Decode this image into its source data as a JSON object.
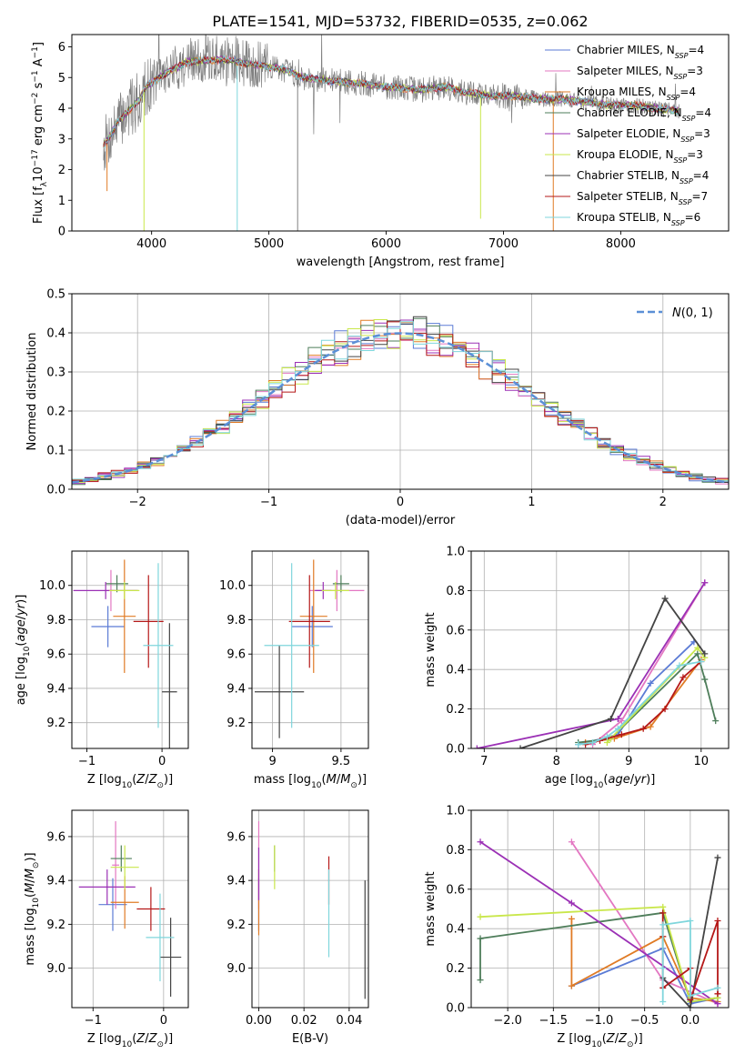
{
  "figure": {
    "title": "PLATE=1541, MJD=53732, FIBERID=0535, z=0.062"
  },
  "chart_data": [
    {
      "id": "spectrum",
      "type": "line",
      "xlabel": "wavelength [Angstrom, rest frame]",
      "ylabel": "Flux [f_λ 10^-17 erg cm^-2 s^-1 A^-1]",
      "xlim": [
        3320,
        8920
      ],
      "ylim": [
        0,
        6.4
      ],
      "xticks": [
        4000,
        5000,
        6000,
        7000,
        8000
      ],
      "yticks": [
        0,
        1,
        2,
        3,
        4,
        5,
        6
      ],
      "legend_position": "right",
      "continuum_anchors": {
        "x": [
          3590,
          3650,
          3700,
          3800,
          3900,
          3950,
          4100,
          4300,
          4600,
          4900,
          5100,
          5300,
          5500,
          5800,
          6000,
          6300,
          6500,
          6700,
          6900,
          7100,
          7300,
          7500,
          7700,
          7900,
          8100,
          8300,
          8500
        ],
        "y": [
          2.8,
          3.1,
          3.5,
          3.9,
          4.3,
          4.7,
          5.1,
          5.5,
          5.6,
          5.4,
          5.3,
          5.0,
          4.9,
          4.8,
          4.7,
          4.6,
          4.7,
          4.5,
          4.4,
          4.4,
          4.3,
          4.3,
          4.2,
          4.1,
          4.1,
          4.0,
          3.9
        ]
      },
      "data_dips": [
        {
          "x": 3620,
          "y": 1.3
        },
        {
          "x": 3935,
          "y": 0.0
        },
        {
          "x": 4730,
          "y": 0.0
        },
        {
          "x": 5245,
          "y": 0.0
        },
        {
          "x": 6805,
          "y": 0.4
        },
        {
          "x": 7425,
          "y": 0.0
        }
      ],
      "series": [
        {
          "name": "Chabrier MILES, N_SSP=4",
          "color": "#5b7bd5"
        },
        {
          "name": "Salpeter MILES, N_SSP=3",
          "color": "#e377c2"
        },
        {
          "name": "Kroupa MILES, N_SSP=4",
          "color": "#e07b25"
        },
        {
          "name": "Chabrier ELODIE, N_SSP=4",
          "color": "#4e7d5a"
        },
        {
          "name": "Salpeter ELODIE, N_SSP=3",
          "color": "#9b30b5"
        },
        {
          "name": "Kroupa ELODIE, N_SSP=3",
          "color": "#c9e74b"
        },
        {
          "name": "Chabrier STELIB, N_SSP=4",
          "color": "#444444"
        },
        {
          "name": "Salpeter STELIB, N_SSP=7",
          "color": "#b51818"
        },
        {
          "name": "Kroupa STELIB, N_SSP=6",
          "color": "#7fd6dc"
        }
      ]
    },
    {
      "id": "residual-histogram",
      "type": "line",
      "xlabel": "(data-model)/error",
      "ylabel": "Normed distribution",
      "xlim": [
        -2.5,
        2.5
      ],
      "ylim": [
        0,
        0.5
      ],
      "xticks": [
        -2,
        -1,
        0,
        1,
        2
      ],
      "yticks": [
        0.0,
        0.1,
        0.2,
        0.3,
        0.4,
        0.5
      ],
      "bin_width": 0.1,
      "reference_curve": {
        "name": "N(0,1)",
        "color": "#5b8fd6",
        "style": "dashed"
      },
      "legend_position": "top-right"
    },
    {
      "id": "age-vs-metallicity",
      "type": "scatter",
      "xlabel": "Z [log10(Z/Zsun)]",
      "ylabel": "age [log10(age/yr)]",
      "xlim": [
        -1.2,
        0.35
      ],
      "ylim": [
        9.05,
        10.2
      ],
      "xticks": [
        -1,
        0
      ],
      "yticks": [
        9.2,
        9.4,
        9.6,
        9.8,
        10.0
      ],
      "points": [
        {
          "series": "Chabrier MILES",
          "x": -0.72,
          "y": 9.76,
          "xerr": 0.22,
          "yerr": 0.12
        },
        {
          "series": "Salpeter MILES",
          "x": -0.68,
          "y": 9.97,
          "xerr": 0.05,
          "yerr": 0.12
        },
        {
          "series": "Kroupa MILES",
          "x": -0.5,
          "y": 9.82,
          "xerr": 0.15,
          "yerr": 0.33
        },
        {
          "series": "Chabrier ELODIE",
          "x": -0.6,
          "y": 10.01,
          "xerr": 0.15,
          "yerr": 0.05
        },
        {
          "series": "Salpeter ELODIE",
          "x": -0.75,
          "y": 9.97,
          "xerr": 0.43,
          "yerr": 0.05
        },
        {
          "series": "Kroupa ELODIE",
          "x": -0.5,
          "y": 9.97,
          "xerr": 0.2,
          "yerr": 0.05
        },
        {
          "series": "Chabrier STELIB",
          "x": 0.1,
          "y": 9.38,
          "xerr": 0.1,
          "yerr": 0.4
        },
        {
          "series": "Salpeter STELIB",
          "x": -0.18,
          "y": 9.79,
          "xerr": 0.2,
          "yerr": 0.27
        },
        {
          "series": "Kroupa STELIB",
          "x": -0.05,
          "y": 9.65,
          "xerr": 0.2,
          "yerr": 0.48
        }
      ]
    },
    {
      "id": "age-vs-mass",
      "type": "scatter",
      "xlabel": "mass [log10(M/Msun)]",
      "ylabel": "",
      "xlim": [
        8.85,
        9.7
      ],
      "ylim": [
        9.05,
        10.2
      ],
      "xticks": [
        9.0,
        9.5
      ],
      "yticks": [
        9.2,
        9.4,
        9.6,
        9.8,
        10.0
      ],
      "points": [
        {
          "series": "Chabrier MILES",
          "x": 9.29,
          "y": 9.76,
          "xerr": 0.15,
          "yerr": 0.12
        },
        {
          "series": "Salpeter MILES",
          "x": 9.47,
          "y": 9.97,
          "xerr": 0.2,
          "yerr": 0.12
        },
        {
          "series": "Kroupa MILES",
          "x": 9.3,
          "y": 9.82,
          "xerr": 0.1,
          "yerr": 0.33
        },
        {
          "series": "Chabrier ELODIE",
          "x": 9.5,
          "y": 10.01,
          "xerr": 0.06,
          "yerr": 0.05
        },
        {
          "series": "Salpeter ELODIE",
          "x": 9.37,
          "y": 9.97,
          "xerr": 0.06,
          "yerr": 0.05
        },
        {
          "series": "Kroupa ELODIE",
          "x": 9.46,
          "y": 9.97,
          "xerr": 0.1,
          "yerr": 0.05
        },
        {
          "series": "Chabrier STELIB",
          "x": 9.05,
          "y": 9.38,
          "xerr": 0.18,
          "yerr": 0.27
        },
        {
          "series": "Salpeter STELIB",
          "x": 9.27,
          "y": 9.79,
          "xerr": 0.15,
          "yerr": 0.27
        },
        {
          "series": "Kroupa STELIB",
          "x": 9.14,
          "y": 9.65,
          "xerr": 0.2,
          "yerr": 0.48
        }
      ]
    },
    {
      "id": "massweight-vs-age",
      "type": "line",
      "xlabel": "age [log10(age/yr)]",
      "ylabel": "mass weight",
      "xlim": [
        6.82,
        10.38
      ],
      "ylim": [
        0,
        1.0
      ],
      "xticks": [
        7,
        8,
        9,
        10
      ],
      "yticks": [
        0.0,
        0.2,
        0.4,
        0.6,
        0.8,
        1.0
      ],
      "series": [
        {
          "name": "Chabrier MILES",
          "x": [
            8.3,
            8.85,
            9.3,
            9.9
          ],
          "y": [
            0.02,
            0.07,
            0.33,
            0.54
          ]
        },
        {
          "name": "Salpeter MILES",
          "x": [
            8.5,
            8.9,
            10.05
          ],
          "y": [
            0.02,
            0.14,
            0.84
          ]
        },
        {
          "name": "Kroupa MILES",
          "x": [
            8.4,
            8.8,
            9.3,
            10.0
          ],
          "y": [
            0.03,
            0.05,
            0.11,
            0.45
          ]
        },
        {
          "name": "Chabrier ELODIE",
          "x": [
            8.3,
            8.75,
            9.95,
            10.05,
            10.2
          ],
          "y": [
            0.03,
            0.05,
            0.48,
            0.35,
            0.14
          ]
        },
        {
          "name": "Salpeter ELODIE",
          "x": [
            6.9,
            8.85,
            10.05
          ],
          "y": [
            0.0,
            0.15,
            0.84
          ]
        },
        {
          "name": "Kroupa ELODIE",
          "x": [
            8.7,
            8.75,
            9.95,
            10.05
          ],
          "y": [
            0.03,
            0.05,
            0.51,
            0.46
          ]
        },
        {
          "name": "Chabrier STELIB",
          "x": [
            7.5,
            8.75,
            9.5,
            10.05
          ],
          "y": [
            0.0,
            0.15,
            0.76,
            0.48
          ]
        },
        {
          "name": "Salpeter STELIB",
          "x": [
            8.4,
            8.6,
            8.9,
            9.2,
            9.5,
            9.75,
            10.0
          ],
          "y": [
            0.02,
            0.04,
            0.07,
            0.1,
            0.2,
            0.36,
            0.44
          ]
        },
        {
          "name": "Kroupa STELIB",
          "x": [
            8.3,
            8.5,
            8.7,
            8.85,
            9.7,
            10.0
          ],
          "y": [
            0.02,
            0.03,
            0.06,
            0.1,
            0.42,
            0.44
          ]
        }
      ]
    },
    {
      "id": "mass-vs-metallicity",
      "type": "scatter",
      "xlabel": "Z [log10(Z/Zsun)]",
      "ylabel": "mass [log10(M/Msun)]",
      "xlim": [
        -1.3,
        0.35
      ],
      "ylim": [
        8.82,
        9.72
      ],
      "xticks": [
        -1,
        0
      ],
      "yticks": [
        9.0,
        9.2,
        9.4,
        9.6
      ],
      "points": [
        {
          "series": "Chabrier MILES",
          "x": -0.72,
          "y": 9.29,
          "xerr": 0.2,
          "yerr": 0.12
        },
        {
          "series": "Salpeter MILES",
          "x": -0.68,
          "y": 9.47,
          "xerr": 0.05,
          "yerr": 0.2
        },
        {
          "series": "Kroupa MILES",
          "x": -0.55,
          "y": 9.3,
          "xerr": 0.2,
          "yerr": 0.12
        },
        {
          "series": "Chabrier ELODIE",
          "x": -0.6,
          "y": 9.5,
          "xerr": 0.15,
          "yerr": 0.06
        },
        {
          "series": "Salpeter ELODIE",
          "x": -0.8,
          "y": 9.37,
          "xerr": 0.4,
          "yerr": 0.08
        },
        {
          "series": "Kroupa ELODIE",
          "x": -0.55,
          "y": 9.46,
          "xerr": 0.2,
          "yerr": 0.1
        },
        {
          "series": "Chabrier STELIB",
          "x": 0.1,
          "y": 9.05,
          "xerr": 0.15,
          "yerr": 0.18
        },
        {
          "series": "Salpeter STELIB",
          "x": -0.18,
          "y": 9.27,
          "xerr": 0.2,
          "yerr": 0.1
        },
        {
          "series": "Kroupa STELIB",
          "x": -0.05,
          "y": 9.14,
          "xerr": 0.2,
          "yerr": 0.2
        }
      ]
    },
    {
      "id": "mass-vs-ebv",
      "type": "scatter",
      "xlabel": "E(B-V)",
      "ylabel": "",
      "xlim": [
        -0.003,
        0.0485
      ],
      "ylim": [
        8.82,
        9.72
      ],
      "xticks": [
        0.0,
        0.02,
        0.04
      ],
      "xtick_labels": [
        "0.00",
        "0.02",
        "0.04"
      ],
      "yticks": [
        9.0,
        9.2,
        9.4,
        9.6
      ],
      "points": [
        {
          "series": "Chabrier MILES",
          "x": 0.0,
          "y": 9.29,
          "xerr": 0.0,
          "yerr": 0.12
        },
        {
          "series": "Salpeter MILES",
          "x": 0.0,
          "y": 9.47,
          "xerr": 0.0,
          "yerr": 0.2
        },
        {
          "series": "Kroupa MILES",
          "x": 0.0,
          "y": 9.3,
          "xerr": 0.0,
          "yerr": 0.15
        },
        {
          "series": "Chabrier ELODIE",
          "x": 0.007,
          "y": 9.5,
          "xerr": 0.0,
          "yerr": 0.06
        },
        {
          "series": "Salpeter ELODIE",
          "x": 0.0,
          "y": 9.43,
          "xerr": 0.0,
          "yerr": 0.12
        },
        {
          "series": "Kroupa ELODIE",
          "x": 0.007,
          "y": 9.46,
          "xerr": 0.0,
          "yerr": 0.1
        },
        {
          "series": "Chabrier STELIB",
          "x": 0.047,
          "y": 9.13,
          "xerr": 0.0,
          "yerr": 0.27
        },
        {
          "series": "Salpeter STELIB",
          "x": 0.031,
          "y": 9.4,
          "xerr": 0.0,
          "yerr": 0.11
        },
        {
          "series": "Kroupa STELIB",
          "x": 0.031,
          "y": 9.25,
          "xerr": 0.0,
          "yerr": 0.2
        }
      ]
    },
    {
      "id": "massweight-vs-metallicity",
      "type": "line",
      "xlabel": "Z [log10(Z/Zsun)]",
      "ylabel": "mass weight",
      "xlim": [
        -2.4,
        0.42
      ],
      "ylim": [
        0,
        1.0
      ],
      "xticks": [
        -2.0,
        -1.5,
        -1.0,
        -0.5,
        0.0
      ],
      "xtick_labels": [
        "−2.0",
        "−1.5",
        "−1.0",
        "−0.5",
        "0.0"
      ],
      "yticks": [
        0.0,
        0.2,
        0.4,
        0.6,
        0.8,
        1.0
      ],
      "series": [
        {
          "name": "Chabrier MILES",
          "x": [
            -1.3,
            -0.3,
            0.0,
            0.3
          ],
          "y": [
            0.11,
            0.3,
            0.02,
            0.05
          ]
        },
        {
          "name": "Salpeter MILES",
          "x": [
            -1.3,
            -0.3,
            0.3
          ],
          "y": [
            0.84,
            0.14,
            0.02
          ]
        },
        {
          "name": "Kroupa MILES",
          "x": [
            -1.3,
            -1.3,
            -0.3,
            0.0,
            0.3
          ],
          "y": [
            0.45,
            0.11,
            0.36,
            0.05,
            0.03
          ]
        },
        {
          "name": "Chabrier ELODIE",
          "x": [
            -2.3,
            -2.3,
            -0.3,
            0.0,
            0.3
          ],
          "y": [
            0.14,
            0.35,
            0.48,
            0.03,
            0.05
          ]
        },
        {
          "name": "Salpeter ELODIE",
          "x": [
            -2.3,
            -1.3,
            0.3
          ],
          "y": [
            0.84,
            0.53,
            0.02
          ]
        },
        {
          "name": "Kroupa ELODIE",
          "x": [
            -2.3,
            -0.3,
            0.0,
            0.3
          ],
          "y": [
            0.46,
            0.51,
            0.03,
            0.05
          ]
        },
        {
          "name": "Chabrier STELIB",
          "x": [
            -0.3,
            0.0,
            0.3
          ],
          "y": [
            0.15,
            0.0,
            0.76
          ]
        },
        {
          "name": "Salpeter STELIB",
          "x": [
            -0.3,
            -0.3,
            -0.3,
            0.0,
            0.0,
            0.3,
            0.3
          ],
          "y": [
            0.48,
            0.36,
            0.1,
            0.2,
            0.04,
            0.44,
            0.07
          ]
        },
        {
          "name": "Kroupa STELIB",
          "x": [
            -0.3,
            -0.3,
            -0.3,
            0.0,
            0.0,
            0.3
          ],
          "y": [
            0.03,
            0.2,
            0.42,
            0.44,
            0.06,
            0.1
          ]
        }
      ]
    }
  ]
}
